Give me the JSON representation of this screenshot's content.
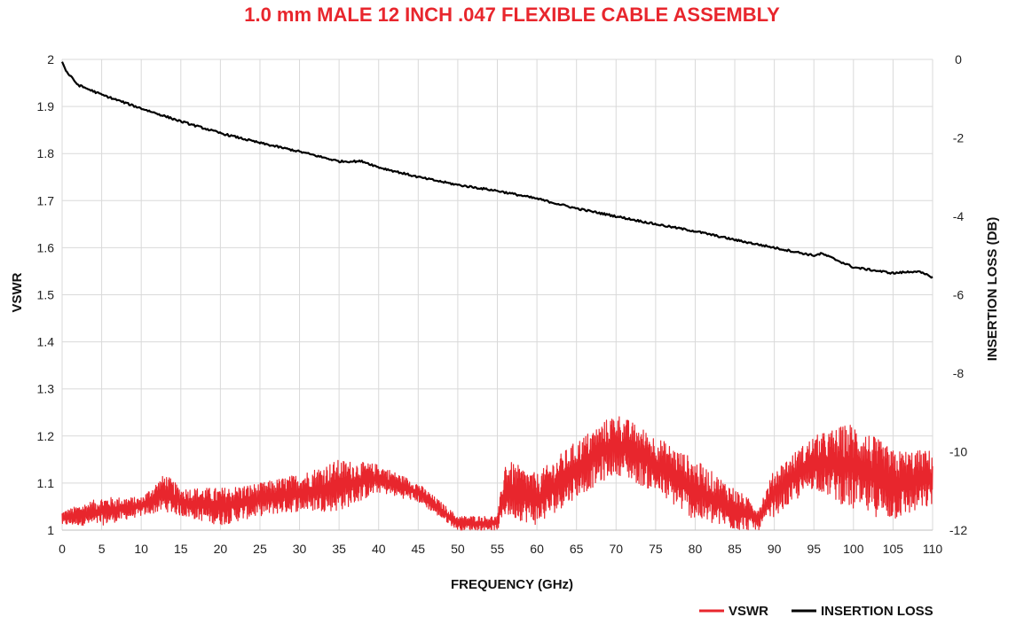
{
  "chart_data": {
    "type": "line",
    "title": "1.0 mm MALE 12 INCH .047 FLEXIBLE CABLE ASSEMBLY",
    "xlabel": "FREQUENCY (GHz)",
    "ylabel": "VSWR",
    "y2label": "INSERTION LOSS (DB)",
    "xlim": [
      0,
      110
    ],
    "ylim": [
      1,
      2
    ],
    "y2lim": [
      -12,
      0
    ],
    "x_ticks": [
      "0",
      "5",
      "10",
      "15",
      "20",
      "25",
      "30",
      "35",
      "40",
      "45",
      "50",
      "55",
      "60",
      "65",
      "70",
      "75",
      "80",
      "85",
      "90",
      "95",
      "100",
      "105",
      "110"
    ],
    "y_ticks": [
      "1",
      "1.1",
      "1.2",
      "1.3",
      "1.4",
      "1.5",
      "1.6",
      "1.7",
      "1.8",
      "1.9",
      "2"
    ],
    "y2_ticks": [
      "-12",
      "-10",
      "-8",
      "-6",
      "-4",
      "-2",
      "0"
    ],
    "grid": true,
    "legend_position": "bottom-right",
    "series": [
      {
        "name": "VSWR",
        "axis": "left",
        "color": "#e8262d",
        "style": "noisy-band",
        "x": [
          0,
          5,
          10,
          13,
          15,
          20,
          25,
          30,
          35,
          40,
          45,
          50,
          55,
          56,
          60,
          65,
          70,
          75,
          80,
          85,
          88,
          90,
          95,
          100,
          105,
          110
        ],
        "upper": [
          1.04,
          1.07,
          1.07,
          1.12,
          1.09,
          1.09,
          1.1,
          1.12,
          1.15,
          1.14,
          1.1,
          1.03,
          1.03,
          1.15,
          1.12,
          1.19,
          1.25,
          1.2,
          1.15,
          1.09,
          1.05,
          1.13,
          1.2,
          1.23,
          1.17,
          1.17
        ],
        "lower": [
          1.01,
          1.01,
          1.03,
          1.04,
          1.03,
          1.01,
          1.03,
          1.04,
          1.04,
          1.08,
          1.06,
          1.0,
          1.0,
          1.03,
          1.01,
          1.07,
          1.12,
          1.08,
          1.02,
          1.0,
          1.0,
          1.03,
          1.09,
          1.04,
          1.02,
          1.05
        ]
      },
      {
        "name": "INSERTION LOSS",
        "axis": "right",
        "color": "#000000",
        "style": "line",
        "x": [
          0,
          0.5,
          2,
          5,
          10,
          15,
          20,
          25,
          30,
          35,
          38,
          40,
          45,
          50,
          55,
          60,
          65,
          70,
          75,
          80,
          85,
          90,
          95,
          96,
          100,
          105,
          108,
          110
        ],
        "values": [
          -0.05,
          -0.3,
          -0.65,
          -0.9,
          -1.25,
          -1.58,
          -1.88,
          -2.13,
          -2.35,
          -2.6,
          -2.6,
          -2.75,
          -3.0,
          -3.2,
          -3.35,
          -3.55,
          -3.8,
          -4.0,
          -4.2,
          -4.38,
          -4.6,
          -4.8,
          -5.0,
          -4.95,
          -5.3,
          -5.45,
          -5.4,
          -5.55
        ]
      }
    ]
  }
}
